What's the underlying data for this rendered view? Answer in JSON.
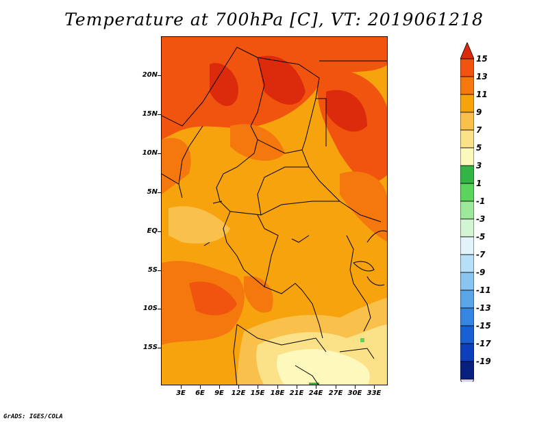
{
  "title": "Temperature at 700hPa [C], VT: 2019061218",
  "y_axis": [
    "20N",
    "15N",
    "10N",
    "5N",
    "EQ",
    "5S",
    "10S",
    "15S"
  ],
  "x_axis": [
    "3E",
    "6E",
    "9E",
    "12E",
    "15E",
    "18E",
    "21E",
    "24E",
    "27E",
    "30E",
    "33E"
  ],
  "colorbar": {
    "labels": [
      "15",
      "13",
      "11",
      "9",
      "7",
      "5",
      "3",
      "1",
      "-1",
      "-3",
      "-5",
      "-7",
      "-9",
      "-11",
      "-13",
      "-15",
      "-17",
      "-19"
    ],
    "colors": [
      "#dc2a0c",
      "#f0540e",
      "#f5780f",
      "#f7a30d",
      "#f9c04b",
      "#fbe187",
      "#fdf9bd",
      "#33b545",
      "#5cd35c",
      "#9de89a",
      "#d4f5d4",
      "#e2f3fb",
      "#b7dff7",
      "#8ac4f1",
      "#5aa5e8",
      "#3586e0",
      "#1860d4",
      "#0d3ebb",
      "#081f7d",
      "#d8d8f0"
    ]
  },
  "credit": "GrADS: IGES/COLA"
}
